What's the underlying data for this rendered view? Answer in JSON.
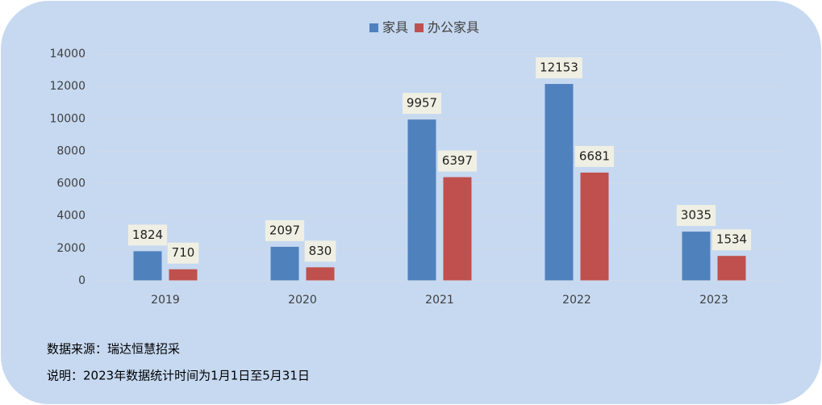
{
  "chart_data": {
    "type": "bar",
    "categories": [
      "2019",
      "2020",
      "2021",
      "2022",
      "2023"
    ],
    "series": [
      {
        "name": "家具",
        "color": "#4f81bd",
        "values": [
          1824,
          2097,
          9957,
          12153,
          3035
        ]
      },
      {
        "name": "办公家具",
        "color": "#c0504d",
        "values": [
          710,
          830,
          6397,
          6681,
          1534
        ]
      }
    ],
    "ylim": [
      0,
      14000
    ],
    "yticks": [
      0,
      2000,
      4000,
      6000,
      8000,
      10000,
      12000,
      14000
    ],
    "grid": true,
    "legend": "top",
    "annotations": [
      "数据来源：瑞达恒慧招采",
      "说明：2023年数据统计时间为1月1日至5月31日"
    ]
  }
}
